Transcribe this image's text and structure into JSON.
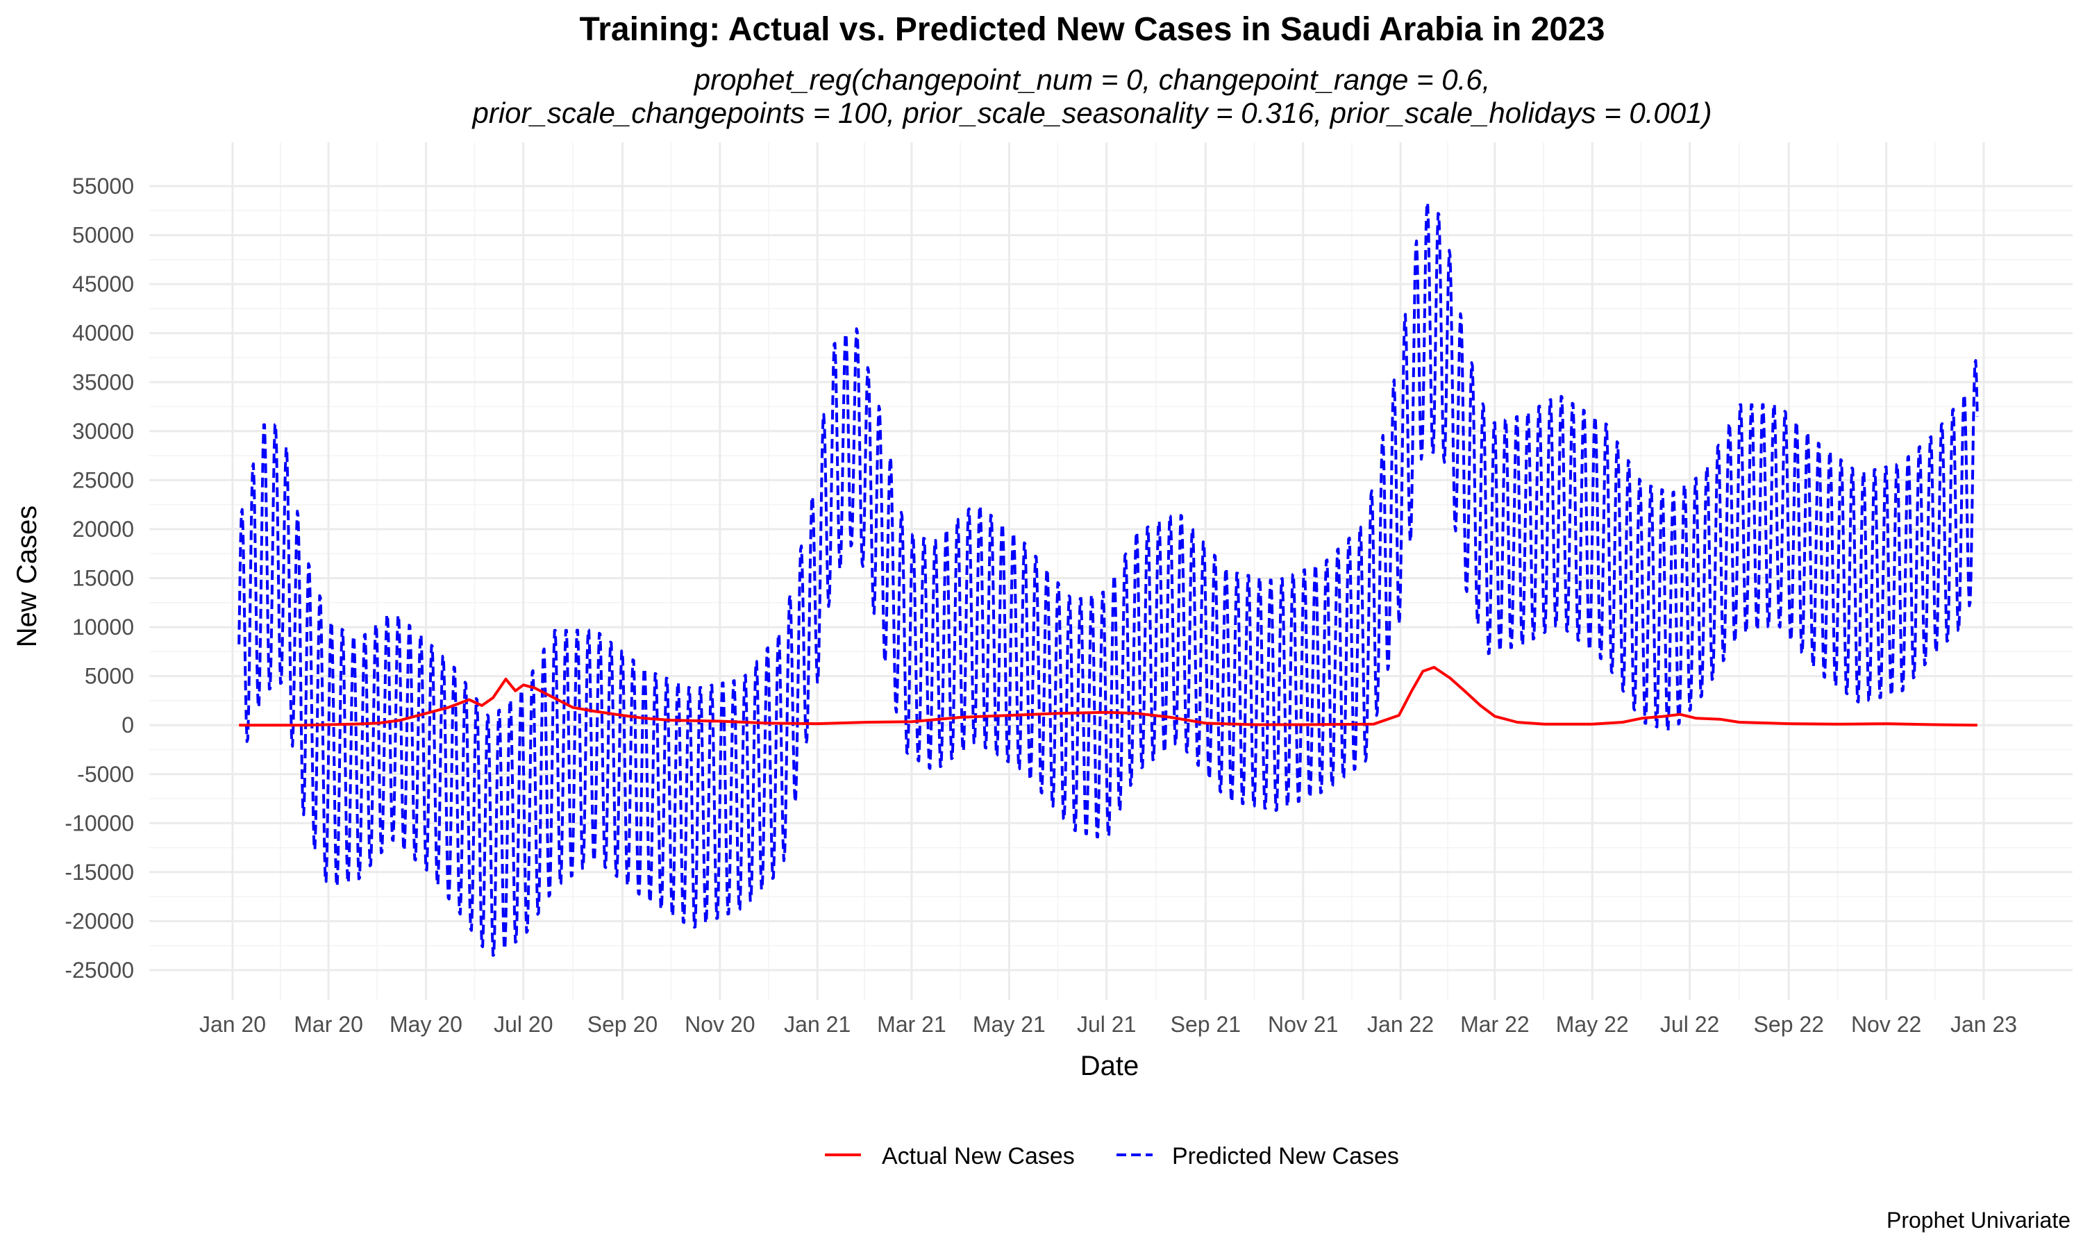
{
  "chart_data": {
    "type": "line",
    "title": "Training: Actual vs. Predicted New Cases in Saudi Arabia in 2023",
    "subtitle_line1": "prophet_reg(changepoint_num = 0, changepoint_range = 0.6,",
    "subtitle_line2": "prior_scale_changepoints = 100, prior_scale_seasonality = 0.316, prior_scale_holidays = 0.001)",
    "xlabel": "Date",
    "ylabel": "New Cases",
    "caption": "Prophet Univariate",
    "x_range": [
      "2020-01-01",
      "2023-01-01"
    ],
    "ylim": [
      -27000,
      57000
    ],
    "x_ticks": [
      {
        "date": "2020-01-01",
        "label": "Jan 20"
      },
      {
        "date": "2020-03-01",
        "label": "Mar 20"
      },
      {
        "date": "2020-05-01",
        "label": "May 20"
      },
      {
        "date": "2020-07-01",
        "label": "Jul 20"
      },
      {
        "date": "2020-09-01",
        "label": "Sep 20"
      },
      {
        "date": "2020-11-01",
        "label": "Nov 20"
      },
      {
        "date": "2021-01-01",
        "label": "Jan 21"
      },
      {
        "date": "2021-03-01",
        "label": "Mar 21"
      },
      {
        "date": "2021-05-01",
        "label": "May 21"
      },
      {
        "date": "2021-07-01",
        "label": "Jul 21"
      },
      {
        "date": "2021-09-01",
        "label": "Sep 21"
      },
      {
        "date": "2021-11-01",
        "label": "Nov 21"
      },
      {
        "date": "2022-01-01",
        "label": "Jan 22"
      },
      {
        "date": "2022-03-01",
        "label": "Mar 22"
      },
      {
        "date": "2022-05-01",
        "label": "May 22"
      },
      {
        "date": "2022-07-01",
        "label": "Jul 22"
      },
      {
        "date": "2022-09-01",
        "label": "Sep 22"
      },
      {
        "date": "2022-11-01",
        "label": "Nov 22"
      },
      {
        "date": "2023-01-01",
        "label": "Jan 23"
      }
    ],
    "y_ticks": [
      -25000,
      -20000,
      -15000,
      -10000,
      -5000,
      0,
      5000,
      10000,
      15000,
      20000,
      25000,
      30000,
      35000,
      40000,
      45000,
      50000,
      55000
    ],
    "grid": true,
    "legend_position": "bottom",
    "series": [
      {
        "name": "Actual New Cases",
        "color": "#ff0000",
        "style": "solid",
        "points": [
          [
            "2020-01-05",
            0
          ],
          [
            "2020-02-15",
            0
          ],
          [
            "2020-03-15",
            100
          ],
          [
            "2020-04-01",
            200
          ],
          [
            "2020-04-15",
            500
          ],
          [
            "2020-05-01",
            1200
          ],
          [
            "2020-05-15",
            1800
          ],
          [
            "2020-05-28",
            2600
          ],
          [
            "2020-06-05",
            2000
          ],
          [
            "2020-06-12",
            2800
          ],
          [
            "2020-06-20",
            4700
          ],
          [
            "2020-06-26",
            3500
          ],
          [
            "2020-07-01",
            4100
          ],
          [
            "2020-07-08",
            3800
          ],
          [
            "2020-07-20",
            2800
          ],
          [
            "2020-08-01",
            1800
          ],
          [
            "2020-08-15",
            1400
          ],
          [
            "2020-09-01",
            1000
          ],
          [
            "2020-09-15",
            700
          ],
          [
            "2020-10-01",
            500
          ],
          [
            "2020-11-01",
            400
          ],
          [
            "2020-12-01",
            200
          ],
          [
            "2021-01-01",
            150
          ],
          [
            "2021-02-01",
            300
          ],
          [
            "2021-03-01",
            350
          ],
          [
            "2021-04-01",
            800
          ],
          [
            "2021-05-01",
            1000
          ],
          [
            "2021-06-01",
            1200
          ],
          [
            "2021-07-01",
            1300
          ],
          [
            "2021-07-20",
            1200
          ],
          [
            "2021-08-10",
            800
          ],
          [
            "2021-09-01",
            200
          ],
          [
            "2021-10-01",
            50
          ],
          [
            "2021-11-01",
            50
          ],
          [
            "2021-12-15",
            100
          ],
          [
            "2021-12-31",
            1000
          ],
          [
            "2022-01-08",
            3500
          ],
          [
            "2022-01-15",
            5500
          ],
          [
            "2022-01-22",
            5900
          ],
          [
            "2022-02-01",
            4800
          ],
          [
            "2022-02-10",
            3500
          ],
          [
            "2022-02-20",
            2000
          ],
          [
            "2022-03-01",
            900
          ],
          [
            "2022-03-15",
            300
          ],
          [
            "2022-04-01",
            100
          ],
          [
            "2022-05-01",
            100
          ],
          [
            "2022-05-20",
            300
          ],
          [
            "2022-06-01",
            700
          ],
          [
            "2022-06-15",
            900
          ],
          [
            "2022-06-25",
            1100
          ],
          [
            "2022-07-05",
            700
          ],
          [
            "2022-07-20",
            600
          ],
          [
            "2022-08-01",
            300
          ],
          [
            "2022-09-01",
            150
          ],
          [
            "2022-10-01",
            100
          ],
          [
            "2022-11-01",
            150
          ],
          [
            "2022-12-01",
            50
          ],
          [
            "2022-12-28",
            0
          ]
        ]
      },
      {
        "name": "Predicted New Cases",
        "color": "#0000ff",
        "style": "dashed",
        "envelope": [
          {
            "date": "2020-01-05",
            "high": 21000,
            "low": -4500
          },
          {
            "date": "2020-01-20",
            "high": 31000,
            "low": 3000
          },
          {
            "date": "2020-02-01",
            "high": 31000,
            "low": 4000
          },
          {
            "date": "2020-02-15",
            "high": 18000,
            "low": -10000
          },
          {
            "date": "2020-03-01",
            "high": 11000,
            "low": -17000
          },
          {
            "date": "2020-03-20",
            "high": 9000,
            "low": -16000
          },
          {
            "date": "2020-04-10",
            "high": 12000,
            "low": -12000
          },
          {
            "date": "2020-05-01",
            "high": 9000,
            "low": -15000
          },
          {
            "date": "2020-05-20",
            "high": 6000,
            "low": -19000
          },
          {
            "date": "2020-06-10",
            "high": 1000,
            "low": -24000
          },
          {
            "date": "2020-07-01",
            "high": 4000,
            "low": -22000
          },
          {
            "date": "2020-07-20",
            "high": 10000,
            "low": -17000
          },
          {
            "date": "2020-08-15",
            "high": 10000,
            "low": -14000
          },
          {
            "date": "2020-09-15",
            "high": 6000,
            "low": -18000
          },
          {
            "date": "2020-10-15",
            "high": 4000,
            "low": -21000
          },
          {
            "date": "2020-11-15",
            "high": 5000,
            "low": -19000
          },
          {
            "date": "2020-12-10",
            "high": 10000,
            "low": -15000
          },
          {
            "date": "2020-12-31",
            "high": 25000,
            "low": 3000
          },
          {
            "date": "2021-01-10",
            "high": 39000,
            "low": 14000
          },
          {
            "date": "2021-01-25",
            "high": 41000,
            "low": 19000
          },
          {
            "date": "2021-02-10",
            "high": 32000,
            "low": 8000
          },
          {
            "date": "2021-02-25",
            "high": 20000,
            "low": -3000
          },
          {
            "date": "2021-03-15",
            "high": 19000,
            "low": -5000
          },
          {
            "date": "2021-04-10",
            "high": 23000,
            "low": -2000
          },
          {
            "date": "2021-05-10",
            "high": 19000,
            "low": -5000
          },
          {
            "date": "2021-06-10",
            "high": 13000,
            "low": -11000
          },
          {
            "date": "2021-07-01",
            "high": 14000,
            "low": -12000
          },
          {
            "date": "2021-07-20",
            "high": 20000,
            "low": -5000
          },
          {
            "date": "2021-08-15",
            "high": 22000,
            "low": -2000
          },
          {
            "date": "2021-09-15",
            "high": 16000,
            "low": -8000
          },
          {
            "date": "2021-10-15",
            "high": 15000,
            "low": -9000
          },
          {
            "date": "2021-11-15",
            "high": 17000,
            "low": -7000
          },
          {
            "date": "2021-12-10",
            "high": 21000,
            "low": -4000
          },
          {
            "date": "2021-12-31",
            "high": 38000,
            "low": 10000
          },
          {
            "date": "2022-01-15",
            "high": 54000,
            "low": 28000
          },
          {
            "date": "2022-01-28",
            "high": 52000,
            "low": 27000
          },
          {
            "date": "2022-02-10",
            "high": 40000,
            "low": 14000
          },
          {
            "date": "2022-02-25",
            "high": 31000,
            "low": 7000
          },
          {
            "date": "2022-03-20",
            "high": 32000,
            "low": 8000
          },
          {
            "date": "2022-04-10",
            "high": 34000,
            "low": 10000
          },
          {
            "date": "2022-05-10",
            "high": 31000,
            "low": 6000
          },
          {
            "date": "2022-06-01",
            "high": 25000,
            "low": 0
          },
          {
            "date": "2022-06-20",
            "high": 24000,
            "low": -1000
          },
          {
            "date": "2022-07-10",
            "high": 26000,
            "low": 3000
          },
          {
            "date": "2022-08-01",
            "high": 33000,
            "low": 9000
          },
          {
            "date": "2022-08-25",
            "high": 33000,
            "low": 10000
          },
          {
            "date": "2022-09-20",
            "high": 29000,
            "low": 5000
          },
          {
            "date": "2022-10-15",
            "high": 26000,
            "low": 2000
          },
          {
            "date": "2022-11-10",
            "high": 27000,
            "low": 3000
          },
          {
            "date": "2022-12-01",
            "high": 30000,
            "low": 7000
          },
          {
            "date": "2022-12-20",
            "high": 34000,
            "low": 10000
          },
          {
            "date": "2022-12-28",
            "high": 38000,
            "low": 15000
          }
        ]
      }
    ]
  }
}
